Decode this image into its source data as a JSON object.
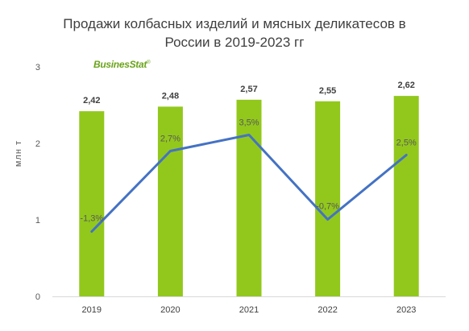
{
  "title_lines": [
    "Продажи колбасных изделий и мясных деликатесов в",
    "России в 2019-2023 гг"
  ],
  "logo": {
    "text": "BusinesStat",
    "mark": "®"
  },
  "colors": {
    "bar": "#92c81c",
    "line": "#4472c4",
    "logo": "#6aa31a"
  },
  "chart_data": {
    "type": "bar",
    "categories": [
      "2019",
      "2020",
      "2021",
      "2022",
      "2023"
    ],
    "series": [
      {
        "values": [
          2.42,
          2.48,
          2.57,
          2.55,
          2.62
        ],
        "labels": [
          "2,42",
          "2,48",
          "2,57",
          "2,55",
          "2,62"
        ],
        "kind": "bar"
      },
      {
        "values": [
          -1.3,
          2.7,
          3.5,
          -0.7,
          2.5
        ],
        "labels": [
          "-1,3%",
          "2,7%",
          "3,5%",
          "-0,7%",
          "2,5%"
        ],
        "kind": "line"
      }
    ],
    "ylabel": "млн т",
    "ylim": [
      0,
      3
    ],
    "yticks": [
      "0",
      "1",
      "2",
      "3"
    ],
    "grid": false,
    "legend": "none"
  }
}
